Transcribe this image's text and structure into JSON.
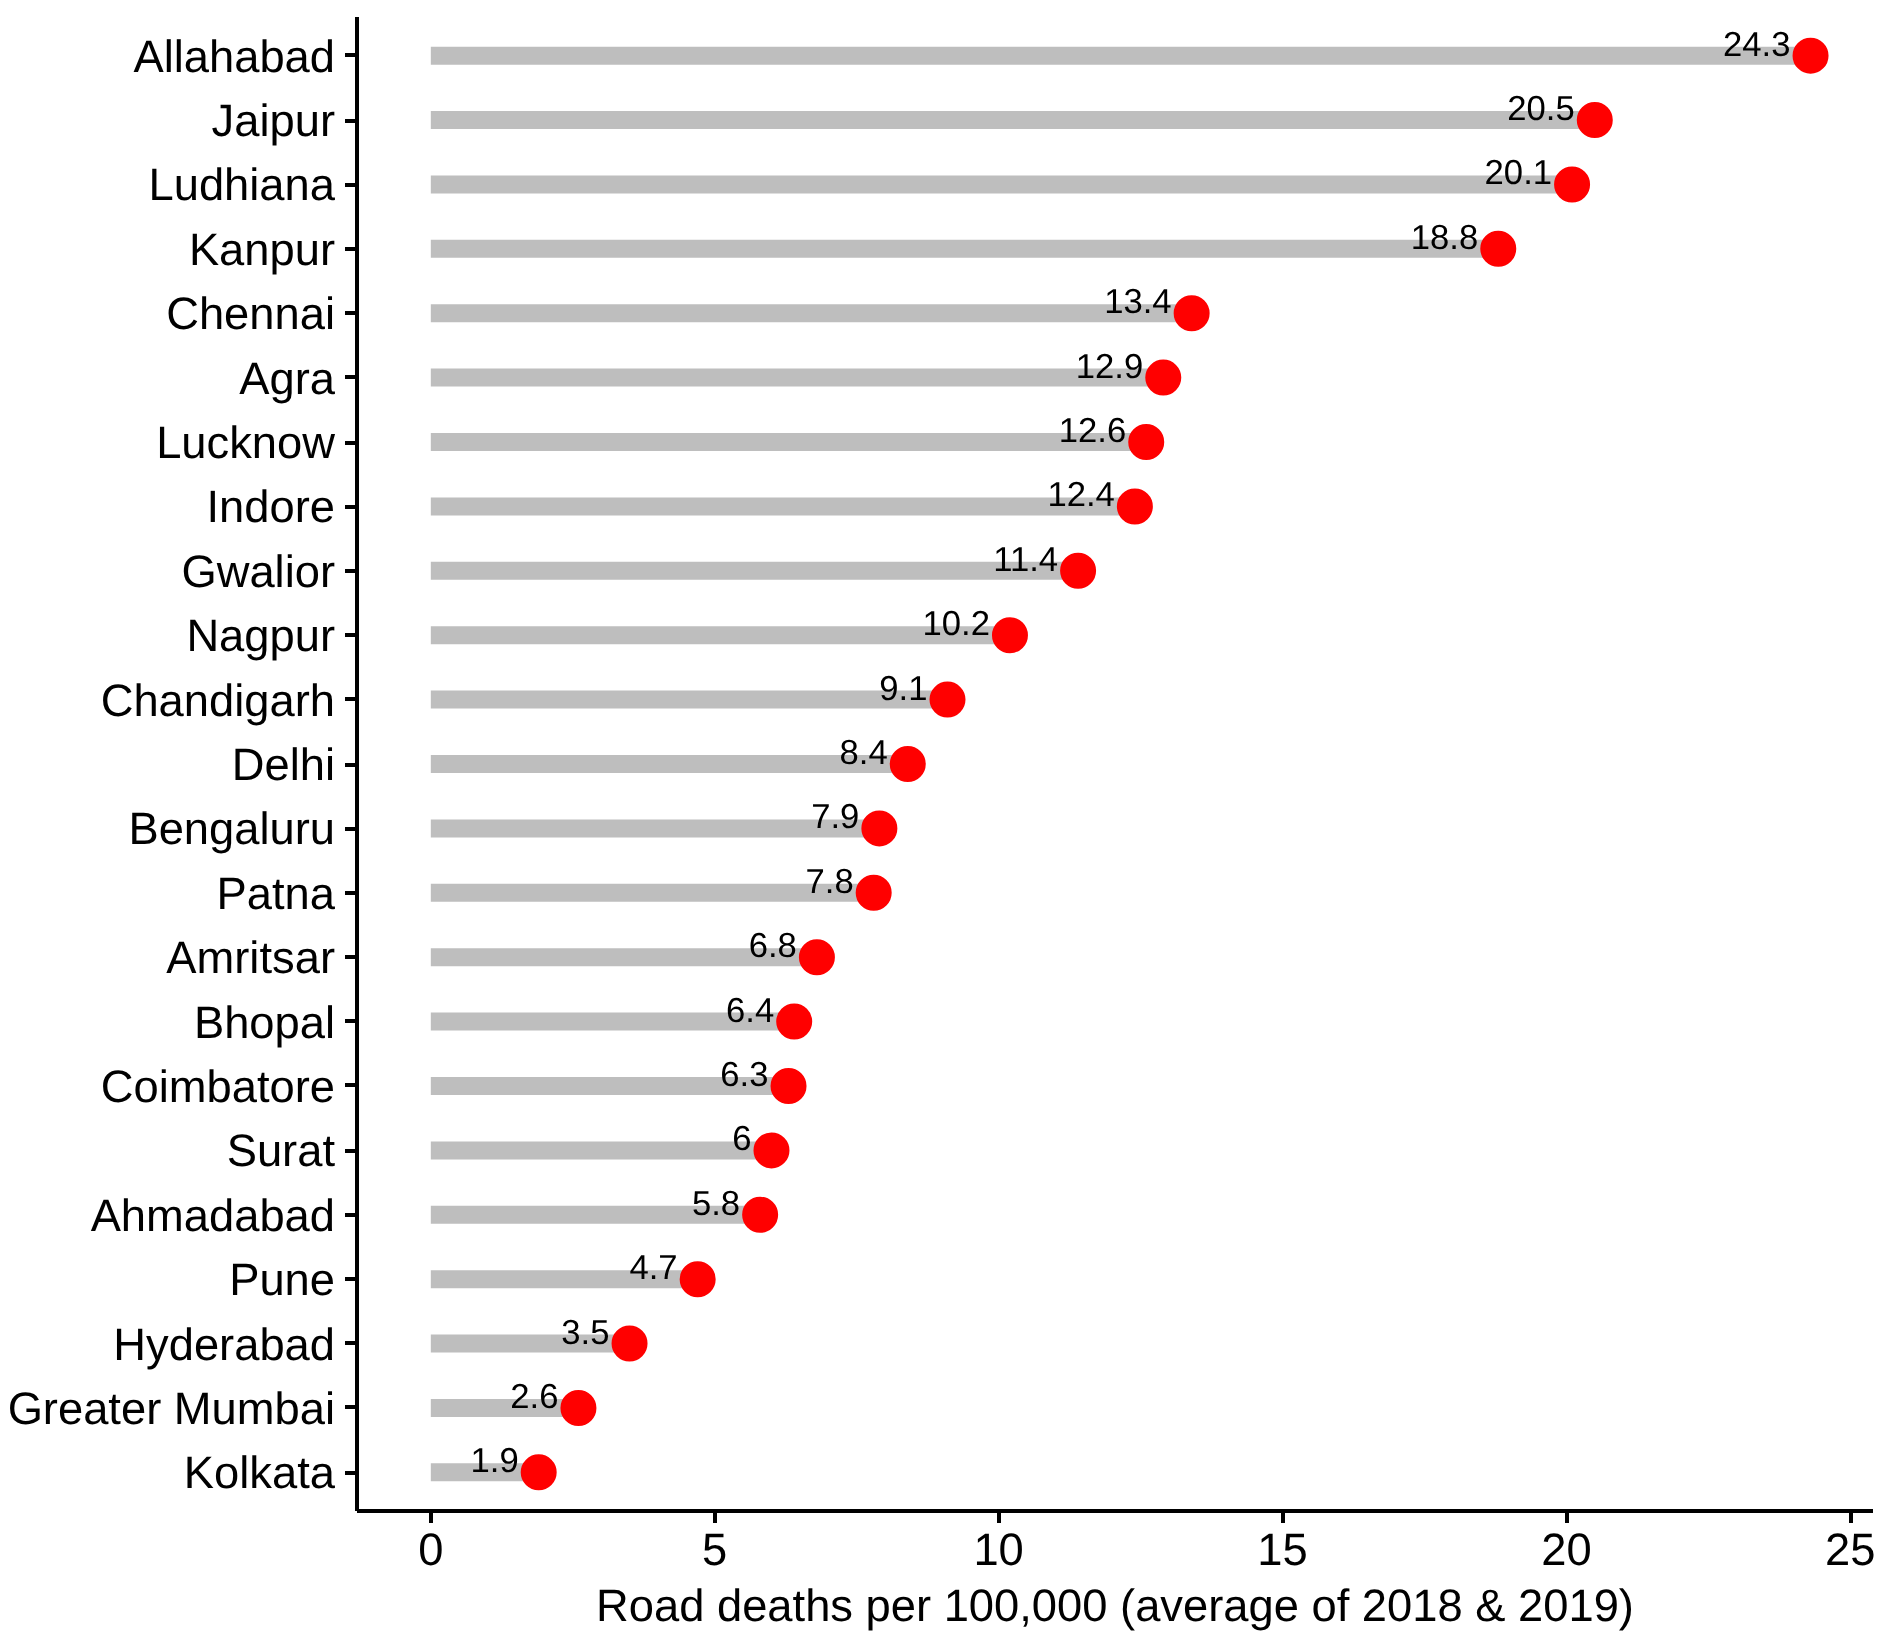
{
  "chart_data": {
    "type": "lollipop",
    "orientation": "horizontal",
    "categories": [
      "Allahabad",
      "Jaipur",
      "Ludhiana",
      "Kanpur",
      "Chennai",
      "Agra",
      "Lucknow",
      "Indore",
      "Gwalior",
      "Nagpur",
      "Chandigarh",
      "Delhi",
      "Bengaluru",
      "Patna",
      "Amritsar",
      "Bhopal",
      "Coimbatore",
      "Surat",
      "Ahmadabad",
      "Pune",
      "Hyderabad",
      "Greater Mumbai",
      "Kolkata"
    ],
    "values": [
      24.3,
      20.5,
      20.1,
      18.8,
      13.4,
      12.9,
      12.6,
      12.4,
      11.4,
      10.2,
      9.1,
      8.4,
      7.9,
      7.8,
      6.8,
      6.4,
      6.3,
      6,
      5.8,
      4.7,
      3.5,
      2.6,
      1.9
    ],
    "color": "#ff0000",
    "marker": "circle",
    "data_labels": true,
    "grid": false,
    "xlim": [
      -1.3,
      25.4
    ],
    "xticks": [
      0,
      5,
      10,
      15,
      20,
      25
    ],
    "xlabel": "Road deaths per 100,000 (average of 2018 & 2019)"
  }
}
